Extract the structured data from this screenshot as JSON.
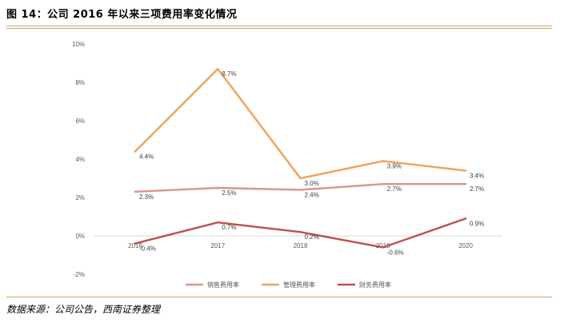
{
  "figure": {
    "title": "图 14：公司 2016 年以来三项费用率变化情况",
    "source": "数据来源：公司公告，西南证券整理"
  },
  "chart_data": {
    "type": "line",
    "categories": [
      "2016",
      "2017",
      "2018",
      "2019",
      "2020"
    ],
    "ylim": [
      -2,
      10
    ],
    "yticks": [
      -2,
      0,
      2,
      4,
      6,
      8,
      10
    ],
    "ytick_labels": [
      "-2%",
      "0%",
      "2%",
      "4%",
      "6%",
      "8%",
      "10%"
    ],
    "grid": false,
    "legend": "bottom",
    "series": [
      {
        "name": "销售费用率",
        "color": "#d9948f",
        "values": [
          2.3,
          2.5,
          2.4,
          2.7,
          2.7
        ],
        "labels": [
          "2.3%",
          "2.5%",
          "2.4%",
          "2.7%",
          "2.7%"
        ]
      },
      {
        "name": "管理费用率",
        "color": "#f0a25a",
        "values": [
          4.4,
          8.7,
          3.0,
          3.9,
          3.4
        ],
        "labels": [
          "4.4%",
          "8.7%",
          "3.0%",
          "3.9%",
          "3.4%"
        ]
      },
      {
        "name": "财务费用率",
        "color": "#c0504d",
        "values": [
          -0.4,
          0.7,
          0.2,
          -0.6,
          0.9
        ],
        "labels": [
          "-0.4%",
          "0.7%",
          "0.2%",
          "-0.6%",
          "0.9%"
        ]
      }
    ]
  }
}
